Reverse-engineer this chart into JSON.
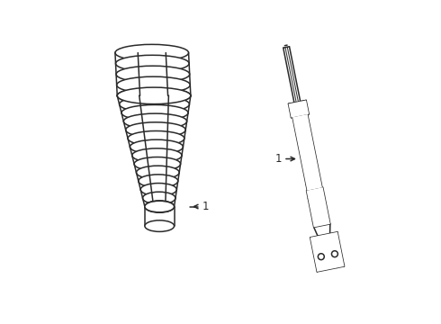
{
  "bg_color": "#ffffff",
  "line_color": "#2a2a2a",
  "line_width": 1.1,
  "figsize": [
    4.9,
    3.6
  ],
  "dpi": 100,
  "label": "1"
}
